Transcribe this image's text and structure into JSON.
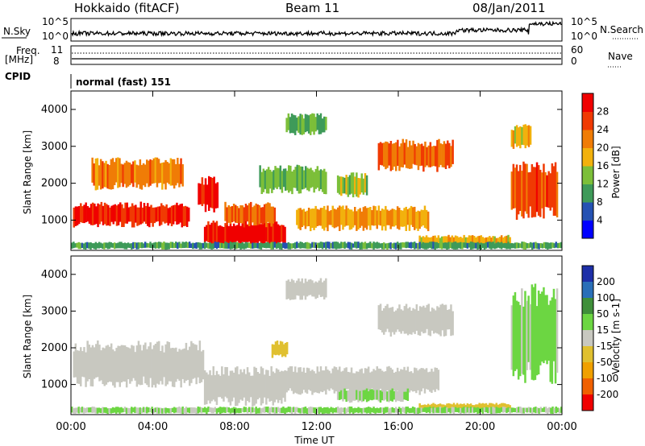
{
  "header": {
    "title": "Hokkaido (fitACF)",
    "beam": "Beam 11",
    "date": "08/Jan/2011"
  },
  "strip_labels": {
    "nsky": "N.Sky",
    "nsearch": "N.Search",
    "noise_ticks": [
      "10^5",
      "10^0"
    ],
    "freq_top": "Freq.",
    "freq_unit": "[MHz]",
    "freq_ticks": [
      "11",
      "8"
    ],
    "nave": "Nave",
    "nave_ticks": [
      "60",
      "0"
    ],
    "cpid": "CPID",
    "cpid_value": "normal (fast) 151"
  },
  "colors": {
    "power": [
      "#0000ff",
      "#2552b3",
      "#3e9a59",
      "#7cbf39",
      "#f2b10d",
      "#f07c06",
      "#f03a03",
      "#f00000"
    ],
    "velocity": [
      "#1d2fa8",
      "#2a6fb8",
      "#3f8f3a",
      "#6cd642",
      "#c8c8c0",
      "#e0c030",
      "#f0a000",
      "#f06000",
      "#f00000"
    ],
    "ground_scatter": "#c4c4bc"
  },
  "chart_data": [
    {
      "type": "heatmap",
      "name": "Power",
      "ylabel": "Slant Range [km]",
      "colorbar_label": "Power [dB]",
      "colorbar_ticks": [
        "28",
        "24",
        "20",
        "16",
        "12",
        "8",
        "4"
      ],
      "clim": [
        0,
        32
      ],
      "x_ticks": [
        "00:00",
        "04:00",
        "08:00",
        "12:00",
        "16:00",
        "20:00",
        "00:00"
      ],
      "xlim_hours": [
        0,
        24
      ],
      "y_ticks": [
        "4000",
        "3000",
        "2000",
        "1000"
      ],
      "ylim": [
        180,
        4500
      ],
      "regions": [
        {
          "t": [
            0.1,
            5.8
          ],
          "r": [
            800,
            1500
          ],
          "db": 28
        },
        {
          "t": [
            1.0,
            5.5
          ],
          "r": [
            1800,
            2700
          ],
          "db": 22
        },
        {
          "t": [
            6.2,
            7.2
          ],
          "r": [
            1200,
            2200
          ],
          "db": 30
        },
        {
          "t": [
            6.5,
            10.5
          ],
          "r": [
            250,
            1000
          ],
          "db": 30
        },
        {
          "t": [
            7.5,
            10.0
          ],
          "r": [
            800,
            1500
          ],
          "db": 24
        },
        {
          "t": [
            9.2,
            12.5
          ],
          "r": [
            1700,
            2500
          ],
          "db": 13
        },
        {
          "t": [
            10.5,
            12.5
          ],
          "r": [
            3300,
            3900
          ],
          "db": 12
        },
        {
          "t": [
            11.0,
            17.5
          ],
          "r": [
            700,
            1400
          ],
          "db": 20
        },
        {
          "t": [
            13.0,
            14.5
          ],
          "r": [
            1600,
            2300
          ],
          "db": 14
        },
        {
          "t": [
            15.0,
            18.7
          ],
          "r": [
            2300,
            3200
          ],
          "db": 24
        },
        {
          "t": [
            17.0,
            21.5
          ],
          "r": [
            250,
            600
          ],
          "db": 18
        },
        {
          "t": [
            21.5,
            23.8
          ],
          "r": [
            1000,
            2600
          ],
          "db": 26
        },
        {
          "t": [
            21.5,
            22.5
          ],
          "r": [
            2900,
            3600
          ],
          "db": 18
        },
        {
          "t": [
            0.0,
            24.0
          ],
          "r": [
            200,
            420
          ],
          "db": 10
        }
      ]
    },
    {
      "type": "heatmap",
      "name": "Velocity",
      "ylabel": "Slant Range [km]",
      "xlabel": "Time UT",
      "colorbar_label": "Velocity [m s-1]",
      "colorbar_ticks": [
        "200",
        "100",
        "50",
        "15",
        "-15",
        "-50",
        "-100",
        "-200"
      ],
      "clim": [
        -250,
        250
      ],
      "x_ticks": [
        "00:00",
        "04:00",
        "08:00",
        "12:00",
        "16:00",
        "20:00",
        "00:00"
      ],
      "xlim_hours": [
        0,
        24
      ],
      "y_ticks": [
        "4000",
        "3000",
        "2000",
        "1000"
      ],
      "ylim": [
        180,
        4500
      ],
      "regions": [
        {
          "t": [
            0.1,
            6.5
          ],
          "r": [
            900,
            2200
          ],
          "v": 0
        },
        {
          "t": [
            6.5,
            10.5
          ],
          "r": [
            400,
            1500
          ],
          "v": 0
        },
        {
          "t": [
            10.0,
            18.0
          ],
          "r": [
            700,
            1500
          ],
          "v": 0
        },
        {
          "t": [
            10.5,
            12.5
          ],
          "r": [
            3300,
            3900
          ],
          "v": 0
        },
        {
          "t": [
            15.0,
            18.7
          ],
          "r": [
            2300,
            3200
          ],
          "v": 0
        },
        {
          "t": [
            9.8,
            10.6
          ],
          "r": [
            1700,
            2200
          ],
          "v": -40
        },
        {
          "t": [
            13.0,
            16.5
          ],
          "r": [
            500,
            900
          ],
          "v": 30
        },
        {
          "t": [
            17.0,
            21.5
          ],
          "r": [
            250,
            500
          ],
          "v": -40
        },
        {
          "t": [
            21.5,
            23.8
          ],
          "r": [
            1000,
            3800
          ],
          "v": 35
        },
        {
          "t": [
            0.0,
            24.0
          ],
          "r": [
            200,
            400
          ],
          "v": 30
        }
      ]
    }
  ]
}
